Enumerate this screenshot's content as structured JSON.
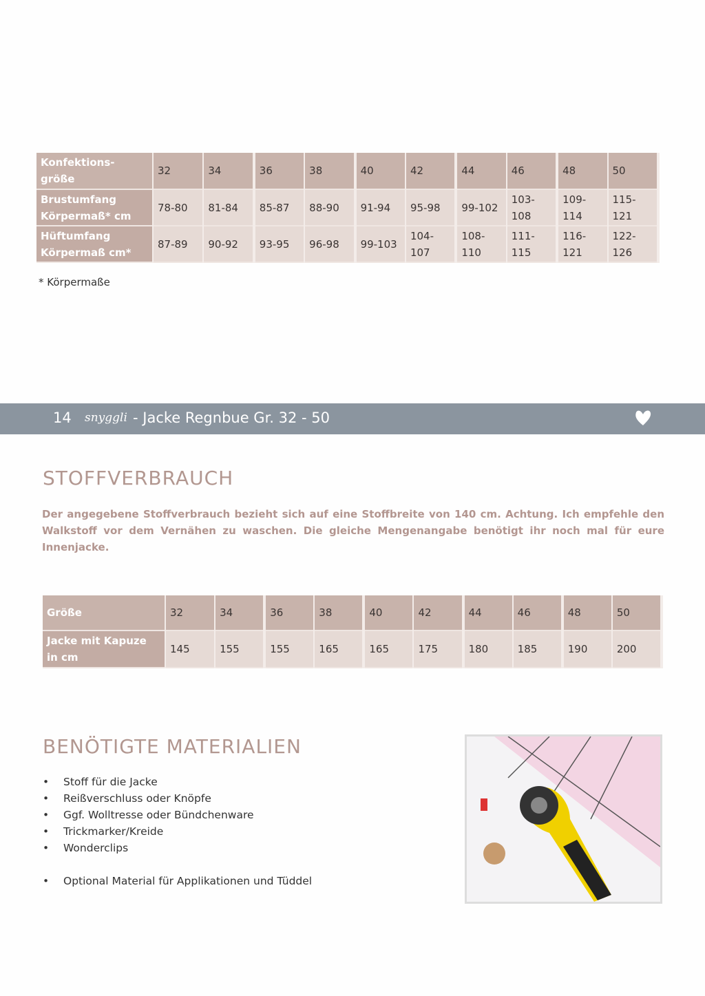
{
  "size_table": {
    "header_label": "Konfektions-größe",
    "sizes": [
      "32",
      "34",
      "36",
      "38",
      "40",
      "42",
      "44",
      "46",
      "48",
      "50"
    ],
    "rows": [
      {
        "label": "Brustumfang Körpermaß* cm",
        "values": [
          "78-80",
          "81-84",
          "85-87",
          "88-90",
          "91-94",
          "95-98",
          "99-102",
          "103-108",
          "109-114",
          "115-121"
        ]
      },
      {
        "label": "Hüftumfang Körpermaß cm*",
        "values": [
          "87-89",
          "90-92",
          "93-95",
          "96-98",
          "99-103",
          "104-107",
          "108-110",
          "111-115",
          "116-121",
          "122-126"
        ]
      }
    ]
  },
  "footnote": "* Körpermaße",
  "footer_band": {
    "page_number": "14",
    "logo": "snyggli",
    "title": "- Jacke Regnbue Gr. 32 - 50",
    "icon": "heart-icon"
  },
  "fabric": {
    "heading": "STOFFVERBRAUCH",
    "text": "Der angegebene Stoffverbrauch bezieht sich auf eine Stoffbreite von 140 cm. Achtung. Ich empfehle den Walkstoff vor dem Vernähen zu waschen. Die gleiche Mengenangabe benötigt ihr noch mal für eure Innenjacke.",
    "table": {
      "header_label": "Größe",
      "sizes": [
        "32",
        "34",
        "36",
        "38",
        "40",
        "42",
        "44",
        "46",
        "48",
        "50"
      ],
      "row": {
        "label": "Jacke mit Kapuze in cm",
        "values": [
          "145",
          "155",
          "155",
          "165",
          "165",
          "175",
          "180",
          "185",
          "190",
          "200"
        ]
      }
    }
  },
  "materials": {
    "heading": "BENÖTIGTE MATERIALIEN",
    "items": [
      "Stoff für die Jacke",
      "Reißverschluss oder Knöpfe",
      "Ggf. Wolltresse oder Bündchenware",
      "Trickmarker/Kreide",
      "Wonderclips"
    ],
    "optional": "Optional Material für Applikationen und Tüddel"
  }
}
